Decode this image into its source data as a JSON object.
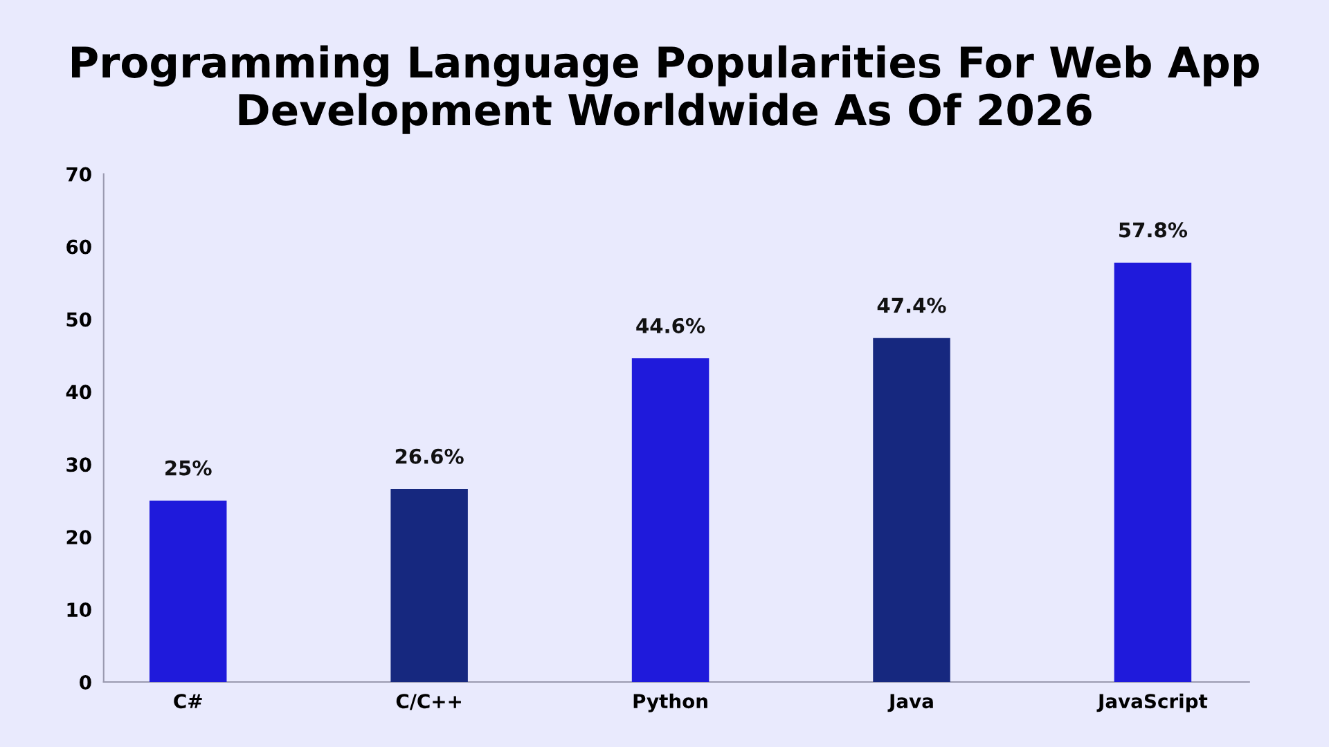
{
  "chart_data": {
    "type": "bar",
    "title": "Programming Language Popularities For Web App Development Worldwide As Of 2026",
    "categories": [
      "C#",
      "C/C++",
      "Python",
      "Java",
      "JavaScript"
    ],
    "values": [
      25,
      26.6,
      44.6,
      47.4,
      57.8
    ],
    "colors": [
      "#1f1adb",
      "#16287f",
      "#1f1adb",
      "#16287f",
      "#1f1adb"
    ],
    "value_labels": [
      "25%",
      "26.6%",
      "44.6%",
      "47.4%",
      "57.8%"
    ],
    "ylim": [
      0,
      70
    ],
    "yticks": [
      0,
      10,
      20,
      30,
      40,
      50,
      60,
      70
    ],
    "grid": false,
    "legend": false
  }
}
